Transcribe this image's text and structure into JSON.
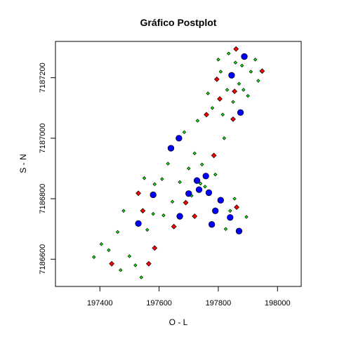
{
  "chart_data": {
    "type": "scatter",
    "title": "Gráfico Postplot",
    "xlabel": "O - L",
    "ylabel": "S - N",
    "xlim": [
      197250,
      198080
    ],
    "ylim": [
      7186510,
      7187320
    ],
    "xticks": [
      197400,
      197600,
      197800,
      198000
    ],
    "xtick_labels": [
      "197400",
      "197600",
      "197800",
      "198000"
    ],
    "yticks": [
      7186600,
      7186800,
      7187000,
      7187200
    ],
    "ytick_labels": [
      "7186600",
      "7186800",
      "7187000",
      "7187200"
    ],
    "grid": false,
    "legend": "none",
    "series": [
      {
        "color": "#00ff00",
        "size": "small",
        "points": [
          {
            "x": 197380,
            "y": 7186607
          },
          {
            "x": 197405,
            "y": 7186650
          },
          {
            "x": 197430,
            "y": 7186630
          },
          {
            "x": 197470,
            "y": 7186564
          },
          {
            "x": 197480,
            "y": 7186760
          },
          {
            "x": 197460,
            "y": 7186690
          },
          {
            "x": 197500,
            "y": 7186610
          },
          {
            "x": 197520,
            "y": 7186580
          },
          {
            "x": 197540,
            "y": 7186540
          },
          {
            "x": 197550,
            "y": 7186868
          },
          {
            "x": 197560,
            "y": 7186697
          },
          {
            "x": 197585,
            "y": 7186848
          },
          {
            "x": 197580,
            "y": 7186750
          },
          {
            "x": 197610,
            "y": 7186865
          },
          {
            "x": 197615,
            "y": 7186745
          },
          {
            "x": 197630,
            "y": 7186916
          },
          {
            "x": 197645,
            "y": 7186790
          },
          {
            "x": 197670,
            "y": 7186855
          },
          {
            "x": 197685,
            "y": 7187020
          },
          {
            "x": 197700,
            "y": 7186900
          },
          {
            "x": 197710,
            "y": 7186810
          },
          {
            "x": 197720,
            "y": 7186950
          },
          {
            "x": 197730,
            "y": 7187058
          },
          {
            "x": 197740,
            "y": 7186850
          },
          {
            "x": 197745,
            "y": 7186913
          },
          {
            "x": 197755,
            "y": 7186840
          },
          {
            "x": 197765,
            "y": 7187148
          },
          {
            "x": 197780,
            "y": 7187100
          },
          {
            "x": 197790,
            "y": 7186880
          },
          {
            "x": 197800,
            "y": 7187260
          },
          {
            "x": 197808,
            "y": 7187220
          },
          {
            "x": 197815,
            "y": 7187078
          },
          {
            "x": 197820,
            "y": 7187000
          },
          {
            "x": 197825,
            "y": 7186700
          },
          {
            "x": 197830,
            "y": 7187160
          },
          {
            "x": 197835,
            "y": 7187280
          },
          {
            "x": 197840,
            "y": 7186760
          },
          {
            "x": 197850,
            "y": 7187120
          },
          {
            "x": 197858,
            "y": 7187250
          },
          {
            "x": 197870,
            "y": 7187180
          },
          {
            "x": 197880,
            "y": 7187240
          },
          {
            "x": 197885,
            "y": 7187160
          },
          {
            "x": 197895,
            "y": 7186740
          },
          {
            "x": 197900,
            "y": 7187140
          },
          {
            "x": 197910,
            "y": 7187220
          },
          {
            "x": 197925,
            "y": 7187260
          },
          {
            "x": 197935,
            "y": 7187190
          },
          {
            "x": 197855,
            "y": 7186800
          }
        ]
      },
      {
        "color": "#ff0000",
        "size": "medium",
        "points": [
          {
            "x": 197440,
            "y": 7186585
          },
          {
            "x": 197530,
            "y": 7186818
          },
          {
            "x": 197545,
            "y": 7186760
          },
          {
            "x": 197565,
            "y": 7186585
          },
          {
            "x": 197585,
            "y": 7186637
          },
          {
            "x": 197650,
            "y": 7186708
          },
          {
            "x": 197690,
            "y": 7186787
          },
          {
            "x": 197720,
            "y": 7186742
          },
          {
            "x": 197760,
            "y": 7187078
          },
          {
            "x": 197785,
            "y": 7186943
          },
          {
            "x": 197795,
            "y": 7187195
          },
          {
            "x": 197805,
            "y": 7187130
          },
          {
            "x": 197850,
            "y": 7187063
          },
          {
            "x": 197855,
            "y": 7187155
          },
          {
            "x": 197860,
            "y": 7187295
          },
          {
            "x": 197862,
            "y": 7186772
          },
          {
            "x": 197948,
            "y": 7187222
          }
        ]
      },
      {
        "color": "#0000ff",
        "size": "large",
        "points": [
          {
            "x": 197530,
            "y": 7186718
          },
          {
            "x": 197580,
            "y": 7186813
          },
          {
            "x": 197640,
            "y": 7186967
          },
          {
            "x": 197667,
            "y": 7187000
          },
          {
            "x": 197670,
            "y": 7186742
          },
          {
            "x": 197700,
            "y": 7186817
          },
          {
            "x": 197728,
            "y": 7186860
          },
          {
            "x": 197735,
            "y": 7186830
          },
          {
            "x": 197758,
            "y": 7186875
          },
          {
            "x": 197768,
            "y": 7186820
          },
          {
            "x": 197778,
            "y": 7186715
          },
          {
            "x": 197790,
            "y": 7186760
          },
          {
            "x": 197808,
            "y": 7186795
          },
          {
            "x": 197840,
            "y": 7186738
          },
          {
            "x": 197845,
            "y": 7187208
          },
          {
            "x": 197870,
            "y": 7186693
          },
          {
            "x": 197875,
            "y": 7187085
          },
          {
            "x": 197888,
            "y": 7187270
          }
        ]
      }
    ]
  }
}
